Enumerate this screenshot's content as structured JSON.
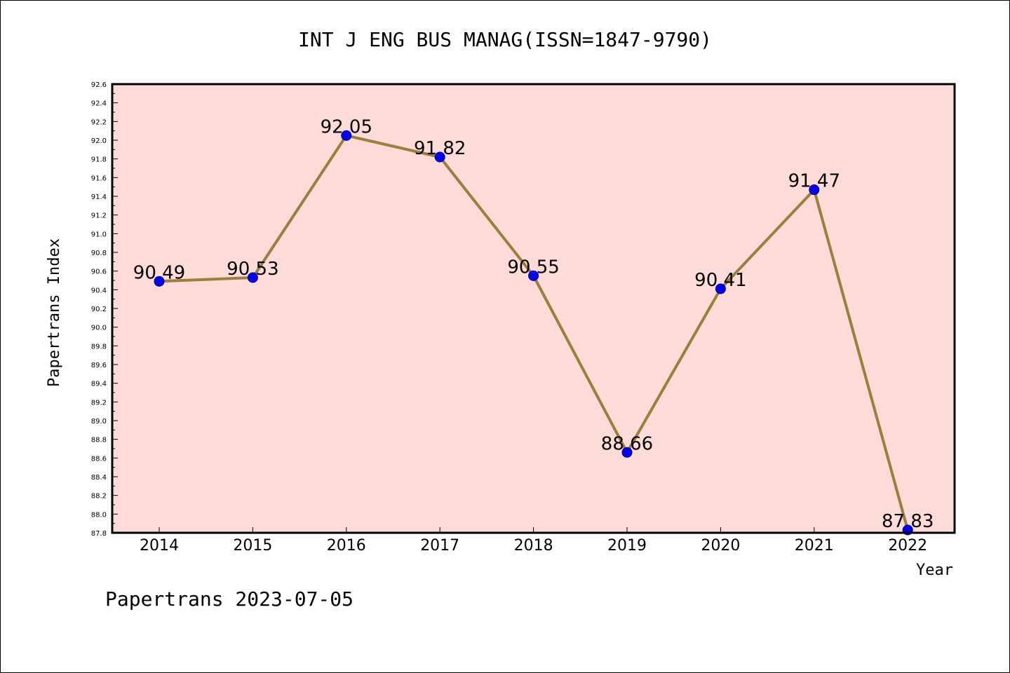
{
  "chart_data": {
    "type": "line",
    "title": "INT J ENG BUS MANAG(ISSN=1847-9790)",
    "xlabel": "Year",
    "ylabel": "Papertrans Index",
    "footer": "Papertrans 2023-07-05",
    "x": [
      "2014",
      "2015",
      "2016",
      "2017",
      "2018",
      "2019",
      "2020",
      "2021",
      "2022"
    ],
    "series": [
      {
        "values": [
          90.49,
          90.53,
          92.05,
          91.82,
          90.55,
          88.66,
          90.41,
          91.47,
          87.83
        ],
        "labels": [
          "90.49",
          "90.53",
          "92.05",
          "91.82",
          "90.55",
          "88.66",
          "90.41",
          "91.47",
          "87.83"
        ]
      }
    ],
    "ylim": [
      87.8,
      92.6
    ],
    "yticks": [
      "87.8",
      "88.0",
      "88.2",
      "88.4",
      "88.6",
      "88.8",
      "89.0",
      "89.2",
      "89.4",
      "89.6",
      "89.8",
      "90.0",
      "90.2",
      "90.4",
      "90.6",
      "90.8",
      "91.0",
      "91.2",
      "91.4",
      "91.6",
      "91.8",
      "92.0",
      "92.2",
      "92.4",
      "92.6"
    ],
    "grid": false,
    "colors": {
      "plot_background": "#fddbd8",
      "line": "#9b7f3a",
      "marker": "#0000ff",
      "marker_edge": "#000080",
      "axes": "#000000"
    }
  }
}
